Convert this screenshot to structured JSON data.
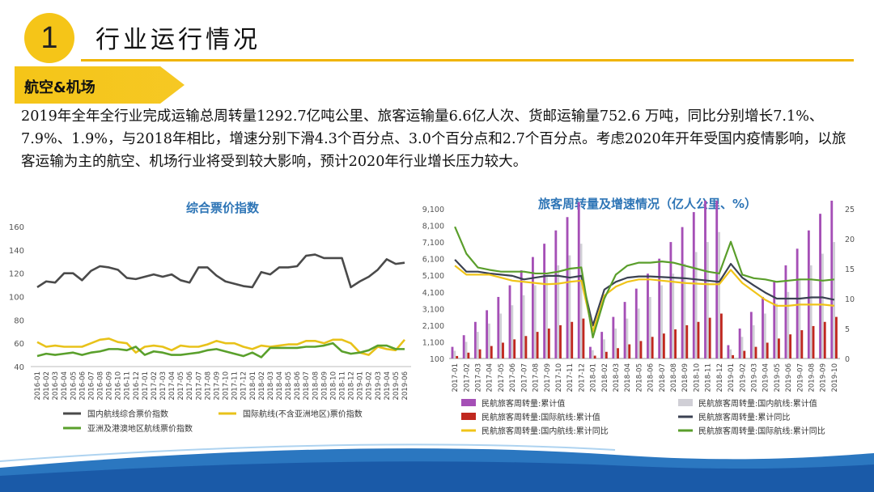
{
  "header": {
    "number": "1",
    "title": "行业运行情况",
    "section_label": "航空&机场"
  },
  "paragraph": "2019年全年全行业完成运输总周转量1292.7亿吨公里、旅客运输量6.6亿人次、货邮运输量752.6 万吨，同比分别增长7.1%、7.9%、1.9%，与2018年相比，增速分别下滑4.3个百分点、3.0个百分点和2.7个百分点。考虑2020年开年受国内疫情影响，以旅客运输为主的航空、机场行业将受到较大影响，预计2020年行业增长压力较大。",
  "colors": {
    "accent_yellow": "#f5c518",
    "title_blue": "#2e75b6",
    "series_dark": "#4a4a4a",
    "series_yellow": "#e8c21a",
    "series_green": "#5aa02c",
    "bar_purple": "#a54fb6",
    "bar_lightgray": "#d0cfd6",
    "bar_red": "#c0281f",
    "line_darkslate": "#3b4152",
    "line_yellow": "#f0c419",
    "line_green": "#5a9e2b"
  },
  "chart_data": [
    {
      "type": "line",
      "title": "综合票价指数",
      "ylim": [
        40,
        160
      ],
      "yticks": [
        40,
        60,
        80,
        100,
        120,
        140,
        160
      ],
      "grid": false,
      "legend_position": "bottom",
      "x": [
        "2016-01",
        "2016-02",
        "2016-03",
        "2016-04",
        "2016-05",
        "2016-06",
        "2016-07",
        "2016-08",
        "2016-09",
        "2016-10",
        "2016-11",
        "2016-12",
        "2017-01",
        "2017-02",
        "2017-03",
        "2017-04",
        "2017-05",
        "2017-06",
        "2017-07",
        "2017-08",
        "2017-09",
        "2017-10",
        "2017-11",
        "2017-12",
        "2018-01",
        "2018-02",
        "2018-03",
        "2018-04",
        "2018-05",
        "2018-06",
        "2018-07",
        "2018-08",
        "2018-09",
        "2018-10",
        "2018-11",
        "2018-12",
        "2019-01",
        "2019-02",
        "2019-03",
        "2019-04",
        "2019-05",
        "2019-06"
      ],
      "series": [
        {
          "name": "国内航线综合票价指数",
          "color": "#4a4a4a",
          "values": [
            108,
            113,
            112,
            120,
            120,
            114,
            122,
            126,
            125,
            123,
            116,
            115,
            117,
            119,
            117,
            119,
            114,
            112,
            125,
            125,
            118,
            113,
            111,
            109,
            108,
            121,
            119,
            125,
            125,
            126,
            135,
            136,
            133,
            133,
            133,
            108,
            113,
            117,
            123,
            132,
            128,
            129
          ]
        },
        {
          "name": "国际航线(不含亚洲地区)票价指数",
          "color": "#e8c21a",
          "values": [
            61,
            57,
            58,
            57,
            57,
            57,
            60,
            63,
            64,
            61,
            60,
            52,
            57,
            58,
            57,
            54,
            58,
            57,
            57,
            59,
            62,
            60,
            60,
            57,
            55,
            58,
            57,
            58,
            59,
            59,
            62,
            62,
            60,
            63,
            63,
            60,
            52,
            50,
            57,
            55,
            54,
            63
          ]
        },
        {
          "name": "亚洲及港澳地区航线票价指数",
          "color": "#5aa02c",
          "values": [
            49,
            51,
            50,
            51,
            52,
            50,
            52,
            53,
            55,
            55,
            54,
            57,
            50,
            53,
            52,
            50,
            50,
            51,
            52,
            54,
            55,
            53,
            51,
            49,
            52,
            48,
            56,
            56,
            56,
            56,
            57,
            57,
            58,
            60,
            53,
            51,
            52,
            54,
            58,
            58,
            55,
            55
          ]
        }
      ]
    },
    {
      "type": "bar",
      "title": "旅客周转量及增速情况（亿人公里、%）",
      "ylim": [
        100,
        9100
      ],
      "yticks": [
        100,
        1100,
        2100,
        3100,
        4100,
        5100,
        6100,
        7100,
        8100,
        9100
      ],
      "yticklabels": [
        "100",
        "1,100",
        "2,100",
        "3,100",
        "4,100",
        "5,100",
        "6,100",
        "7,100",
        "8,100",
        "9,100"
      ],
      "y2lim": [
        0,
        25
      ],
      "y2ticks": [
        0,
        5,
        10,
        15,
        20,
        25
      ],
      "legend_position": "bottom",
      "x": [
        "2017-01",
        "2017-02",
        "2017-03",
        "2017-04",
        "2017-05",
        "2017-06",
        "2017-07",
        "2017-08",
        "2017-09",
        "2017-10",
        "2017-11",
        "2017-12",
        "2018-01",
        "2018-02",
        "2018-03",
        "2018-04",
        "2018-05",
        "2018-06",
        "2018-07",
        "2018-08",
        "2018-09",
        "2018-10",
        "2018-11",
        "2018-12",
        "2019-01",
        "2019-02",
        "2019-03",
        "2019-04",
        "2019-05",
        "2019-06",
        "2019-07",
        "2019-08",
        "2019-09",
        "2019-10"
      ],
      "bar_series": [
        {
          "name": "民航旅客周转量:累计值",
          "color": "#a54fb6",
          "values": [
            800,
            1500,
            2300,
            3000,
            3800,
            4500,
            5400,
            6200,
            7000,
            7800,
            8600,
            9500,
            800,
            1700,
            2600,
            3500,
            4300,
            5200,
            6100,
            7100,
            8000,
            8900,
            9700,
            10500,
            900,
            1900,
            2900,
            3800,
            4700,
            5700,
            6700,
            7800,
            8800,
            9800
          ]
        },
        {
          "name": "民航旅客周转量:国内航线:累计值",
          "color": "#d0cfd6",
          "values": [
            560,
            1100,
            1700,
            2200,
            2800,
            3300,
            3900,
            4500,
            5100,
            5700,
            6300,
            7000,
            600,
            1250,
            1900,
            2500,
            3100,
            3800,
            4500,
            5200,
            5800,
            6500,
            7100,
            7700,
            650,
            1400,
            2100,
            2800,
            3400,
            4100,
            4900,
            5700,
            6400,
            7100
          ]
        },
        {
          "name": "民航旅客周转量:国际航线:累计值",
          "color": "#c0281f",
          "values": [
            250,
            450,
            650,
            850,
            1050,
            1250,
            1450,
            1700,
            1900,
            2100,
            2300,
            2500,
            270,
            500,
            720,
            950,
            1150,
            1400,
            1600,
            1850,
            2100,
            2300,
            2550,
            2800,
            300,
            560,
            800,
            1050,
            1300,
            1550,
            1800,
            2050,
            2300,
            2600
          ]
        }
      ],
      "line_series": [
        {
          "name": "民航旅客周转量:累计同比",
          "color": "#3b4152",
          "values": [
            16.5,
            14.5,
            14.5,
            14.2,
            14.0,
            13.8,
            13.2,
            13.5,
            13.8,
            13.8,
            13.5,
            13.8,
            5.5,
            11.5,
            12.8,
            13.5,
            13.7,
            13.7,
            13.6,
            13.5,
            13.4,
            13.2,
            13.0,
            12.8,
            15.8,
            13.5,
            12.2,
            11.0,
            10.0,
            10.0,
            10.0,
            10.2,
            10.2,
            9.8
          ]
        },
        {
          "name": "民航旅客周转量:国内航线:累计同比",
          "color": "#f0c419",
          "values": [
            15.5,
            14.0,
            14.0,
            14.0,
            13.5,
            13.0,
            12.8,
            12.6,
            12.4,
            12.5,
            12.8,
            13.0,
            4.5,
            10.5,
            12.0,
            12.8,
            13.2,
            13.2,
            13.0,
            12.8,
            12.6,
            12.5,
            12.4,
            12.4,
            14.8,
            12.6,
            11.2,
            9.8,
            8.8,
            8.8,
            9.0,
            9.0,
            9.0,
            8.8
          ]
        },
        {
          "name": "民航旅客周转量:国际航线:累计同比",
          "color": "#5a9e2b",
          "values": [
            22.0,
            17.5,
            15.2,
            14.8,
            14.5,
            14.5,
            14.5,
            14.2,
            14.2,
            14.5,
            15.0,
            15.2,
            3.5,
            10.0,
            14.0,
            15.5,
            16.0,
            16.0,
            16.2,
            16.0,
            15.5,
            15.0,
            14.5,
            14.2,
            19.5,
            14.0,
            13.4,
            13.2,
            12.8,
            13.0,
            13.2,
            13.2,
            13.0,
            13.2
          ]
        }
      ]
    }
  ]
}
